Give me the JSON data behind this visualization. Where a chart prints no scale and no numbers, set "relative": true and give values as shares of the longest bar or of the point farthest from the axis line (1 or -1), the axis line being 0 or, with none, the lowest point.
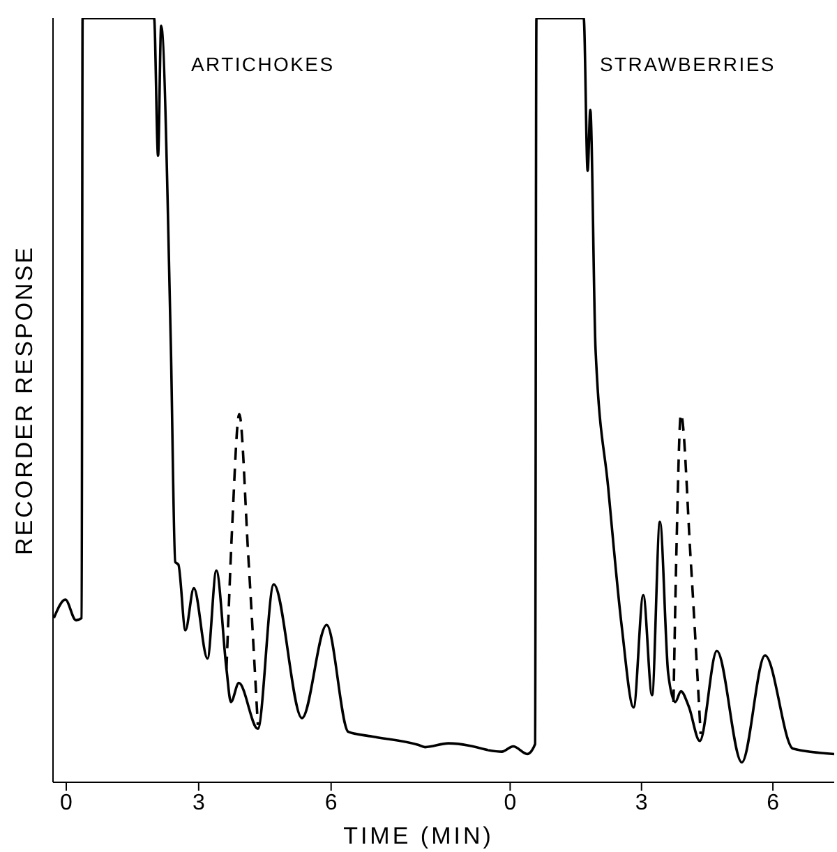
{
  "chart_data": [
    {
      "type": "line",
      "title": "ARTICHOKES",
      "xlabel": "TIME (MIN)",
      "ylabel": "RECORDER RESPONSE",
      "relative": true,
      "xlim": [
        -0.3,
        9.56
      ],
      "xticks": [
        0,
        3,
        6
      ],
      "tick_labels": "x",
      "series": [
        {
          "color": "#000000",
          "line_style": "solid",
          "x": [
            -0.28,
            -0.02,
            0.22,
            0.35,
            0.37,
            1.99,
            2.08,
            2.15,
            2.37,
            2.47,
            2.54,
            2.7,
            2.89,
            3.2,
            3.4,
            3.63,
            3.73,
            3.91,
            4.34,
            4.7,
            5.34,
            5.9,
            6.39,
            6.92,
            7.97,
            8.13,
            8.66,
            9.56
          ],
          "values": [
            0.215,
            0.239,
            0.212,
            0.215,
            1,
            1,
            0.82,
            0.99,
            0.57,
            0.288,
            0.285,
            0.199,
            0.254,
            0.162,
            0.277,
            0.148,
            0.105,
            0.13,
            0.07,
            0.259,
            0.084,
            0.206,
            0.066,
            0.06,
            0.049,
            0.046,
            0.051,
            0.042
          ]
        },
        {
          "color": "#000000",
          "line_style": "dashed",
          "x": [
            3.63,
            3.76,
            3.92,
            4.12,
            4.34
          ],
          "values": [
            0.148,
            0.336,
            0.482,
            0.3,
            0.075
          ]
        }
      ]
    },
    {
      "type": "line",
      "title": "STRAWBERRIES",
      "relative": true,
      "xlim": [
        -0.5,
        7.4
      ],
      "xticks": [
        0,
        3,
        6
      ],
      "tick_labels": "x",
      "series": [
        {
          "color": "#000000",
          "line_style": "solid",
          "x": [
            -0.5,
            -0.19,
            0.07,
            0.39,
            0.57,
            0.6,
            1.68,
            1.77,
            1.83,
            1.95,
            2.24,
            2.55,
            2.82,
            3.04,
            3.24,
            3.42,
            3.61,
            3.77,
            3.9,
            4.08,
            4.33,
            4.72,
            5.29,
            5.82,
            6.46,
            7.4
          ],
          "values": [
            0.042,
            0.04,
            0.047,
            0.037,
            0.05,
            1,
            1,
            0.8,
            0.88,
            0.567,
            0.385,
            0.203,
            0.098,
            0.245,
            0.114,
            0.341,
            0.142,
            0.105,
            0.119,
            0.099,
            0.054,
            0.172,
            0.026,
            0.166,
            0.044,
            0.037
          ]
        },
        {
          "color": "#000000",
          "line_style": "dashed",
          "x": [
            3.73,
            3.8,
            3.9,
            4.12,
            4.35
          ],
          "values": [
            0.105,
            0.31,
            0.482,
            0.294,
            0.063
          ]
        }
      ]
    }
  ]
}
